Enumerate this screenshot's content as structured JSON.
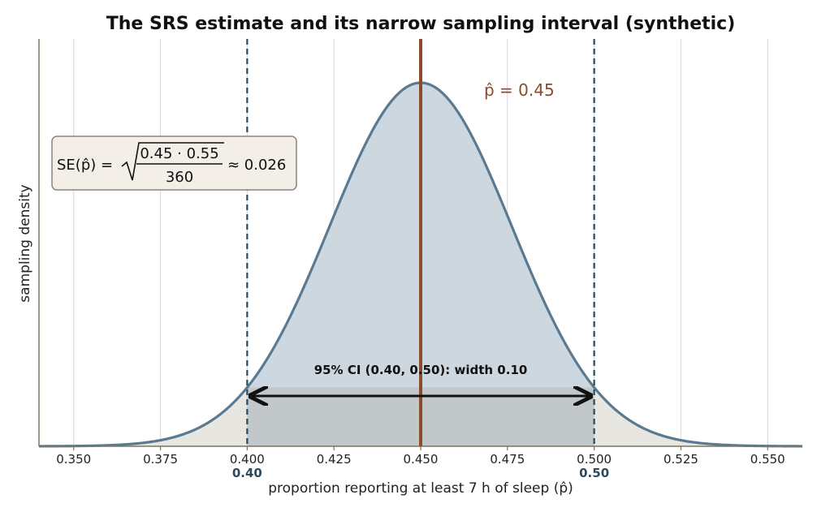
{
  "chart_data": {
    "type": "area",
    "title": "The SRS estimate and its narrow sampling interval (synthetic)",
    "xlabel": "proportion reporting at least 7 h of sleep (p̂)",
    "ylabel": "sampling density",
    "xlim": [
      0.34,
      0.56
    ],
    "x_ticks": [
      0.35,
      0.375,
      0.4,
      0.425,
      0.45,
      0.475,
      0.5,
      0.525,
      0.55
    ],
    "x_tick_labels": [
      "0.350",
      "0.375",
      "0.400",
      "0.425",
      "0.450",
      "0.475",
      "0.500",
      "0.525",
      "0.550"
    ],
    "grid": "vertical",
    "distribution": {
      "kind": "normal",
      "mean": 0.45,
      "sd": 0.0262
    },
    "estimate": {
      "value": 0.45,
      "label": "p̂ = 0.45"
    },
    "ci": {
      "lower": 0.4,
      "upper": 0.5,
      "lower_label": "0.40",
      "upper_label": "0.50",
      "label": "95% CI (0.40, 0.50): width 0.10"
    },
    "se_annotation": {
      "lhs": "SE(p̂) =",
      "numerator": "0.45 · 0.55",
      "denominator": "360",
      "result": "≈ 0.026"
    },
    "colors": {
      "curve": "#5b7a90",
      "fill_center": "#cdd7df",
      "fill_tails": "#e8e6e1",
      "ci_shade": "#c0c4c6",
      "estimate_line": "#8b4a2b",
      "ci_lines": "#2c4a5e",
      "axis": "#7a7460"
    }
  }
}
